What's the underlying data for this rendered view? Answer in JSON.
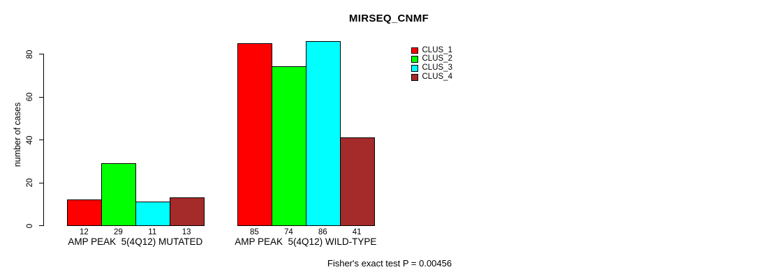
{
  "chart_data": {
    "type": "bar",
    "title": "MIRSEQ_CNMF",
    "ylabel": "number of cases",
    "xlabel": "",
    "categories": [
      "AMP PEAK  5(4Q12) MUTATED",
      "AMP PEAK  5(4Q12) WILD-TYPE"
    ],
    "series": [
      {
        "name": "CLUS_1",
        "color": "#ff0000",
        "values": [
          12,
          85
        ]
      },
      {
        "name": "CLUS_2",
        "color": "#00ff00",
        "values": [
          29,
          74
        ]
      },
      {
        "name": "CLUS_3",
        "color": "#00ffff",
        "values": [
          11,
          86
        ]
      },
      {
        "name": "CLUS_4",
        "color": "#a52a2a",
        "values": [
          13,
          41
        ]
      }
    ],
    "bar_value_labels": [
      [
        "12",
        "29",
        "11",
        "13"
      ],
      [
        "85",
        "74",
        "86",
        "41"
      ]
    ],
    "yticks": [
      0,
      20,
      40,
      60,
      80
    ],
    "ylim": [
      0,
      86
    ],
    "grid": false,
    "legend_position": "right-top",
    "annotation": "Fisher's exact test P = 0.00456"
  }
}
